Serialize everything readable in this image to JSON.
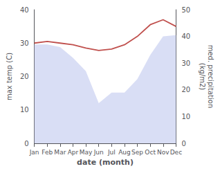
{
  "chart_data": {
    "type": "line",
    "xlabel": "date (month)",
    "ylabel": "max temp (C)",
    "y2label": "med. precipitation\n(kg/m2)",
    "categories": [
      "Jan",
      "Feb",
      "Mar",
      "Apr",
      "May",
      "Jun",
      "Jul",
      "Aug",
      "Sep",
      "Oct",
      "Nov",
      "Dec"
    ],
    "series": [
      {
        "type": "area",
        "color": "#c5cdf0",
        "axis": "y2",
        "values": [
          37.0,
          37.0,
          36.0,
          32.0,
          27.0,
          15.0,
          19.0,
          19.0,
          24.0,
          33.0,
          40.0,
          40.5
        ]
      },
      {
        "type": "line",
        "color": "#c0504d",
        "values": [
          30.0,
          30.5,
          30.0,
          29.5,
          28.5,
          27.8,
          28.2,
          29.5,
          32.0,
          35.5,
          37.0,
          35.0
        ]
      }
    ],
    "ylim": [
      0,
      40
    ],
    "yticks": [
      0,
      10,
      20,
      30,
      40
    ],
    "y2lim": [
      0,
      50
    ],
    "y2ticks": [
      0,
      10,
      20,
      30,
      40,
      50
    ],
    "grid": false
  }
}
